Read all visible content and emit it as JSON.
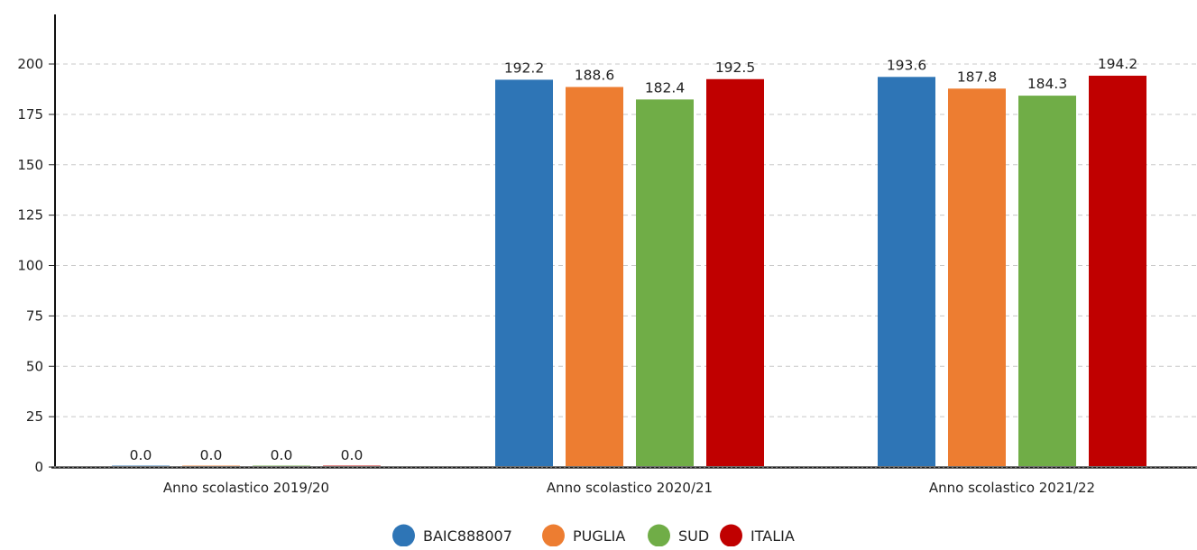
{
  "chart_data": {
    "type": "bar",
    "categories": [
      "Anno scolastico 2019/20",
      "Anno scolastico 2020/21",
      "Anno scolastico 2021/22"
    ],
    "series": [
      {
        "name": "BAIC888007",
        "color": "#2e75b6",
        "values": [
          0.0,
          192.2,
          193.6
        ],
        "labels": [
          "0.0",
          "192.2",
          "193.6"
        ]
      },
      {
        "name": "PUGLIA",
        "color": "#ed7d31",
        "values": [
          0.0,
          188.6,
          187.8
        ],
        "labels": [
          "0.0",
          "188.6",
          "187.8"
        ]
      },
      {
        "name": "SUD",
        "color": "#70ad47",
        "values": [
          0.0,
          182.4,
          184.3
        ],
        "labels": [
          "0.0",
          "182.4",
          "184.3"
        ]
      },
      {
        "name": "ITALIA",
        "color": "#c00000",
        "values": [
          0.0,
          192.5,
          194.2
        ],
        "labels": [
          "0.0",
          "192.5",
          "194.2"
        ]
      }
    ],
    "title": "",
    "xlabel": "",
    "ylabel": "",
    "ylim": [
      0,
      225
    ],
    "yticks": [
      0,
      25,
      50,
      75,
      100,
      125,
      150,
      175,
      200
    ],
    "grid": true,
    "legend_position": "bottom-center"
  }
}
